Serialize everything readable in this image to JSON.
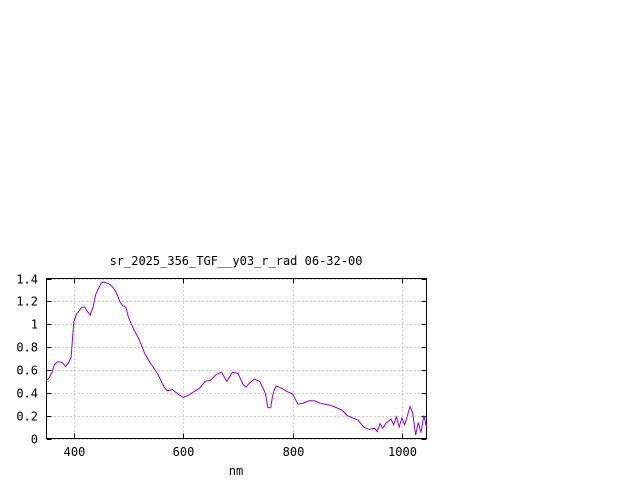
{
  "chart_data": {
    "type": "line",
    "title": "sr_2025_356_TGF__y03_r_rad 06-32-00",
    "xlabel": "nm",
    "ylabel": "",
    "xlim": [
      350,
      1045
    ],
    "ylim": [
      0,
      1.4
    ],
    "x_ticks": [
      {
        "value": 400,
        "label": "400"
      },
      {
        "value": 600,
        "label": "600"
      },
      {
        "value": 800,
        "label": "800"
      },
      {
        "value": 1000,
        "label": "1000"
      }
    ],
    "y_ticks": [
      {
        "value": 0,
        "label": "0"
      },
      {
        "value": 0.2,
        "label": "0.2"
      },
      {
        "value": 0.4,
        "label": "0.4"
      },
      {
        "value": 0.6,
        "label": "0.6"
      },
      {
        "value": 0.8,
        "label": "0.8"
      },
      {
        "value": 1,
        "label": "1"
      },
      {
        "value": 1.2,
        "label": "1.2"
      },
      {
        "value": 1.4,
        "label": "1.4"
      }
    ],
    "grid": true,
    "color": "#9400d3",
    "series": [
      {
        "x": [
          350,
          355,
          360,
          365,
          370,
          375,
          380,
          385,
          390,
          395,
          400,
          405,
          410,
          415,
          420,
          425,
          430,
          435,
          440,
          445,
          450,
          455,
          460,
          465,
          470,
          475,
          480,
          485,
          490,
          495,
          500,
          510,
          520,
          530,
          540,
          550,
          555,
          560,
          565,
          570,
          575,
          580,
          590,
          600,
          610,
          620,
          630,
          640,
          650,
          660,
          670,
          680,
          690,
          700,
          710,
          715,
          720,
          725,
          730,
          740,
          750,
          755,
          760,
          763,
          766,
          770,
          775,
          780,
          790,
          800,
          810,
          820,
          830,
          840,
          850,
          860,
          870,
          880,
          890,
          900,
          910,
          920,
          930,
          940,
          950,
          955,
          960,
          965,
          970,
          975,
          980,
          985,
          990,
          995,
          1000,
          1005,
          1010,
          1015,
          1020,
          1025,
          1030,
          1035,
          1040,
          1045
        ],
        "y": [
          0.51,
          0.53,
          0.58,
          0.65,
          0.67,
          0.67,
          0.66,
          0.63,
          0.66,
          0.71,
          1.02,
          1.09,
          1.12,
          1.15,
          1.15,
          1.11,
          1.08,
          1.15,
          1.26,
          1.31,
          1.36,
          1.37,
          1.36,
          1.35,
          1.33,
          1.3,
          1.25,
          1.19,
          1.16,
          1.15,
          1.06,
          0.95,
          0.86,
          0.74,
          0.66,
          0.59,
          0.55,
          0.5,
          0.45,
          0.42,
          0.42,
          0.43,
          0.39,
          0.36,
          0.38,
          0.41,
          0.44,
          0.5,
          0.51,
          0.56,
          0.58,
          0.5,
          0.58,
          0.57,
          0.47,
          0.45,
          0.48,
          0.5,
          0.52,
          0.5,
          0.4,
          0.27,
          0.27,
          0.36,
          0.42,
          0.46,
          0.45,
          0.44,
          0.41,
          0.39,
          0.3,
          0.31,
          0.33,
          0.33,
          0.31,
          0.3,
          0.29,
          0.27,
          0.25,
          0.2,
          0.18,
          0.16,
          0.1,
          0.08,
          0.09,
          0.06,
          0.13,
          0.09,
          0.13,
          0.15,
          0.17,
          0.12,
          0.19,
          0.1,
          0.18,
          0.12,
          0.2,
          0.28,
          0.22,
          0.03,
          0.14,
          0.05,
          0.2,
          0.1
        ]
      }
    ]
  }
}
